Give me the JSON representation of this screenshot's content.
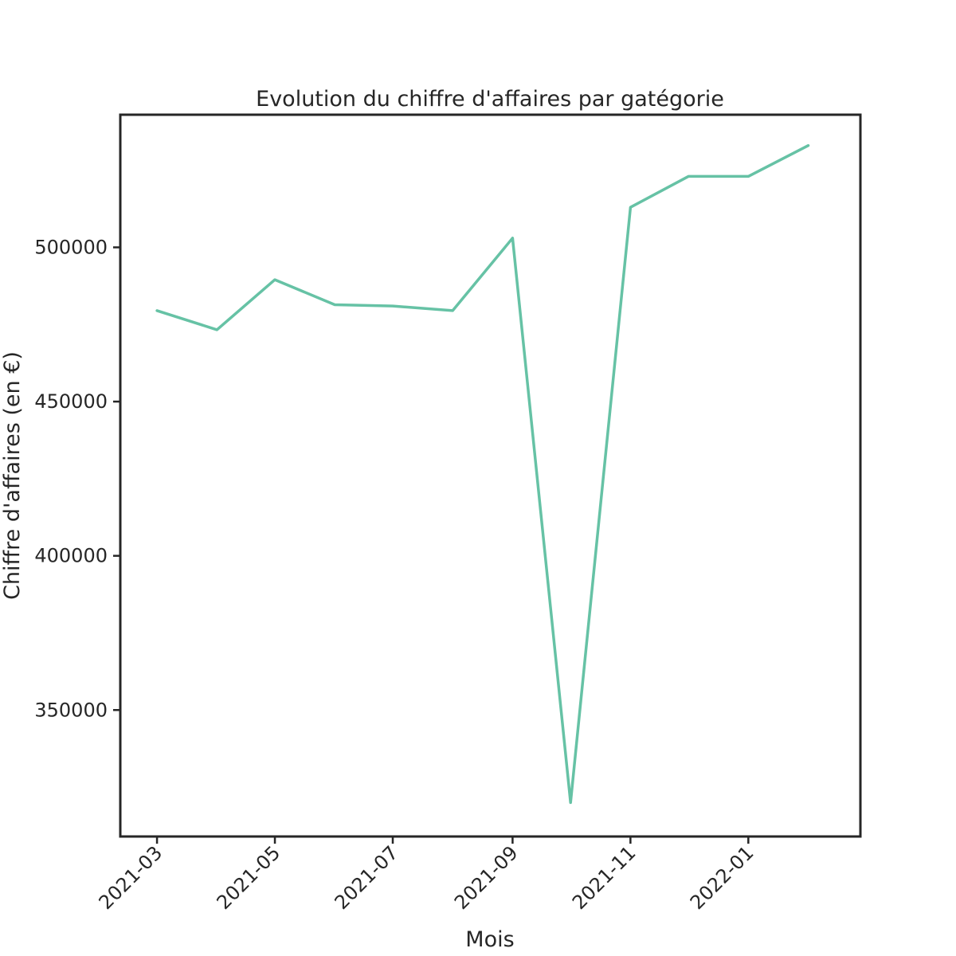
{
  "chart_data": {
    "type": "line",
    "title": "Evolution du chiffre d'affaires par gatégorie",
    "xlabel": "Mois",
    "ylabel": "Chiffre d'affaires (en €)",
    "x": [
      "2021-03",
      "2021-04",
      "2021-05",
      "2021-06",
      "2021-07",
      "2021-08",
      "2021-09",
      "2021-10",
      "2021-11",
      "2021-12",
      "2022-01",
      "2022-02"
    ],
    "series": [
      {
        "color": "#66c2a5",
        "values": [
          479500,
          473300,
          489500,
          481400,
          481000,
          479500,
          503000,
          320000,
          513000,
          523000,
          523000,
          533000
        ]
      }
    ],
    "x_ticks": [
      "2021-03",
      "2021-05",
      "2021-07",
      "2021-09",
      "2021-11",
      "2022-01"
    ],
    "y_ticks": [
      350000,
      400000,
      450000,
      500000
    ],
    "ylim": [
      309000,
      543000
    ],
    "xlim": [
      "2021-02-10",
      "2022-02-28"
    ],
    "grid": false
  }
}
